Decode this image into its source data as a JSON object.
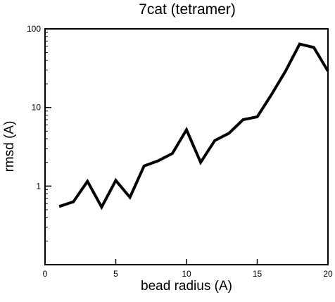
{
  "chart_data": {
    "type": "line",
    "title": "7cat (tetramer)",
    "xlabel": "bead radius (A)",
    "ylabel": "rmsd (A)",
    "xlim": [
      0,
      20
    ],
    "ylim": [
      0.1,
      100
    ],
    "yscale": "log",
    "grid": false,
    "x_ticks": [
      0,
      5,
      10,
      15,
      20
    ],
    "x_tick_labels": [
      "0",
      "5",
      "10",
      "15",
      "20"
    ],
    "y_ticks": [
      1,
      10,
      100
    ],
    "y_tick_labels": [
      "1",
      "10",
      "100"
    ],
    "series": [
      {
        "x": [
          1,
          2,
          3,
          4,
          5,
          6,
          7,
          8,
          9,
          10,
          11,
          12,
          13,
          14,
          15,
          16,
          17,
          18,
          19,
          20
        ],
        "y": [
          0.55,
          0.63,
          1.15,
          0.54,
          1.18,
          0.72,
          1.8,
          2.1,
          2.6,
          5.2,
          2.0,
          3.8,
          4.7,
          7.0,
          7.6,
          14.5,
          29,
          64,
          58,
          29
        ],
        "color": "#000000"
      }
    ]
  }
}
